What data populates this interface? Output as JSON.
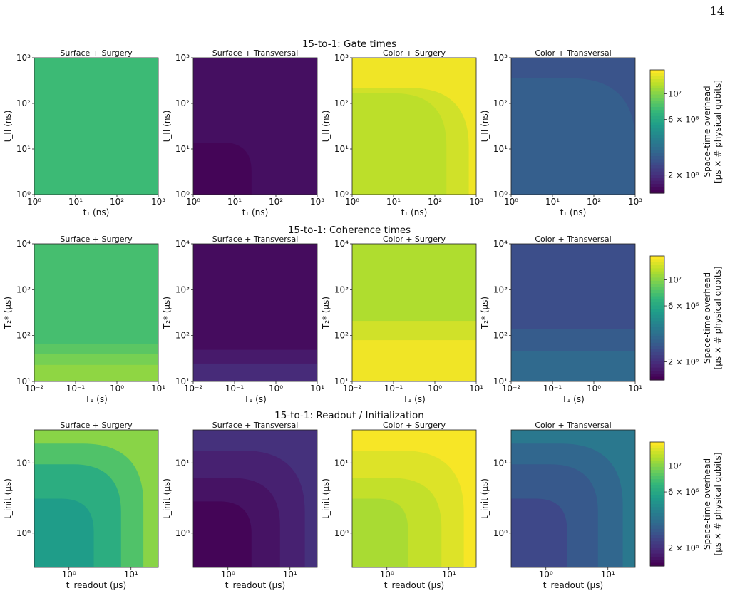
{
  "page_number": "14",
  "colormap": [
    "#440154",
    "#482878",
    "#3e4989",
    "#31688e",
    "#26828e",
    "#1f9e89",
    "#35b779",
    "#6ece58",
    "#b5de2b",
    "#fde725"
  ],
  "chart_data": [
    {
      "type": "heatmap",
      "title": "15-to-1: Gate times",
      "colorbar": {
        "label_line1": "Space-time overhead",
        "label_line2": "[μs × # physical qubits]",
        "ticks": [
          {
            "value": 10000000,
            "label": "10⁷"
          },
          {
            "value": 6000000,
            "label": "6 × 10⁶"
          },
          {
            "value": 2000000,
            "label": "2 × 10⁶"
          }
        ]
      },
      "panels": [
        {
          "title": "Surface + Surgery",
          "xlabel": "t₁ (ns)",
          "ylabel": "t_II (ns)",
          "xticks": [
            "10⁰",
            "10¹",
            "10²",
            "10³"
          ],
          "yticks": [
            "10⁰",
            "10¹",
            "10²",
            "10³"
          ],
          "regions": [
            {
              "value": 0.68
            }
          ]
        },
        {
          "title": "Surface + Transversal",
          "xlabel": "t₁ (ns)",
          "ylabel": "t_II (ns)",
          "xticks": [
            "10⁰",
            "10¹",
            "10²",
            "10³"
          ],
          "yticks": [
            "10⁰",
            "10¹",
            "10²",
            "10³"
          ],
          "regions": [
            {
              "value": 0.04
            },
            {
              "value": 0.01,
              "corner": [
                0.47,
                0.38
              ]
            }
          ]
        },
        {
          "title": "Color + Surgery",
          "xlabel": "t₁ (ns)",
          "ylabel": "t_II (ns)",
          "xticks": [
            "10⁰",
            "10¹",
            "10²",
            "10³"
          ],
          "yticks": [
            "10⁰",
            "10¹",
            "10²",
            "10³"
          ],
          "regions": [
            {
              "value": 0.98
            },
            {
              "value": 0.93,
              "corner": [
                0.94,
                0.78
              ]
            },
            {
              "value": 0.9,
              "corner": [
                0.76,
                0.74
              ]
            }
          ]
        },
        {
          "title": "Color + Transversal",
          "xlabel": "t₁ (ns)",
          "ylabel": "t_II (ns)",
          "xticks": [
            "10⁰",
            "10¹",
            "10²",
            "10³"
          ],
          "yticks": [
            "10⁰",
            "10¹",
            "10²",
            "10³"
          ],
          "regions": [
            {
              "value": 0.26
            },
            {
              "value": 0.3,
              "corner": [
                1.0,
                0.85
              ]
            }
          ]
        }
      ]
    },
    {
      "type": "heatmap",
      "title": "15-to-1: Coherence times",
      "colorbar": {
        "label_line1": "Space-time overhead",
        "label_line2": "[μs × # physical qubits]",
        "ticks": [
          {
            "value": 10000000,
            "label": "10⁷"
          },
          {
            "value": 6000000,
            "label": "6 × 10⁶"
          },
          {
            "value": 2000000,
            "label": "2 × 10⁶"
          }
        ]
      },
      "panels": [
        {
          "title": "Surface + Surgery",
          "xlabel": "T₁ (s)",
          "ylabel": "T₂* (μs)",
          "xticks": [
            "10⁻²",
            "10⁻¹",
            "10⁰",
            "10¹"
          ],
          "yticks": [
            "10¹",
            "10²",
            "10³",
            "10⁴"
          ],
          "regions": [
            {
              "value": 0.7
            },
            {
              "value": 0.74,
              "band": [
                0.0,
                0.27
              ]
            },
            {
              "value": 0.79,
              "band": [
                0.0,
                0.2
              ]
            },
            {
              "value": 0.83,
              "band": [
                0.0,
                0.12
              ]
            }
          ]
        },
        {
          "title": "Surface + Transversal",
          "xlabel": "T₁ (s)",
          "ylabel": "T₂* (μs)",
          "xticks": [
            "10⁻²",
            "10⁻¹",
            "10⁰",
            "10¹"
          ],
          "yticks": [
            "10¹",
            "10²",
            "10³",
            "10⁴"
          ],
          "regions": [
            {
              "value": 0.03
            },
            {
              "value": 0.07,
              "band": [
                0.0,
                0.23
              ]
            },
            {
              "value": 0.12,
              "band": [
                0.0,
                0.13
              ]
            }
          ]
        },
        {
          "title": "Color + Surgery",
          "xlabel": "T₁ (s)",
          "ylabel": "T₂* (μs)",
          "xticks": [
            "10⁻²",
            "10⁻¹",
            "10⁰",
            "10¹"
          ],
          "yticks": [
            "10¹",
            "10²",
            "10³",
            "10⁴"
          ],
          "regions": [
            {
              "value": 0.88
            },
            {
              "value": 0.93,
              "band": [
                0.0,
                0.44
              ]
            },
            {
              "value": 0.98,
              "band": [
                0.0,
                0.3
              ]
            }
          ]
        },
        {
          "title": "Color + Transversal",
          "xlabel": "T₁ (s)",
          "ylabel": "T₂* (μs)",
          "xticks": [
            "10⁻²",
            "10⁻¹",
            "10⁰",
            "10¹"
          ],
          "yticks": [
            "10¹",
            "10²",
            "10³",
            "10⁴"
          ],
          "regions": [
            {
              "value": 0.24
            },
            {
              "value": 0.29,
              "band": [
                0.0,
                0.38
              ]
            },
            {
              "value": 0.34,
              "band": [
                0.0,
                0.22
              ]
            }
          ]
        }
      ]
    },
    {
      "type": "heatmap",
      "title": "15-to-1: Readout / Initialization",
      "colorbar": {
        "label_line1": "Space-time overhead",
        "label_line2": "[μs × # physical qubits]",
        "ticks": [
          {
            "value": 10000000,
            "label": "10⁷"
          },
          {
            "value": 6000000,
            "label": "6 × 10⁶"
          },
          {
            "value": 2000000,
            "label": "2 × 10⁶"
          }
        ]
      },
      "panels": [
        {
          "title": "Surface + Surgery",
          "xlabel": "t_readout (μs)",
          "ylabel": "t_init (μs)",
          "xticks": [
            "10⁰",
            "10¹"
          ],
          "yticks": [
            "10⁰",
            "10¹"
          ],
          "regions": [
            {
              "value": 0.82
            },
            {
              "value": 0.72,
              "corner": [
                0.88,
                0.9
              ]
            },
            {
              "value": 0.62,
              "corner": [
                0.7,
                0.75
              ]
            },
            {
              "value": 0.55,
              "corner": [
                0.48,
                0.5
              ]
            }
          ]
        },
        {
          "title": "Surface + Transversal",
          "xlabel": "t_readout (μs)",
          "ylabel": "t_init (μs)",
          "xticks": [
            "10⁰",
            "10¹"
          ],
          "yticks": [
            "10¹",
            "10⁰"
          ],
          "regions": [
            {
              "value": 0.14
            },
            {
              "value": 0.09,
              "corner": [
                0.9,
                0.85
              ]
            },
            {
              "value": 0.05,
              "corner": [
                0.7,
                0.65
              ]
            },
            {
              "value": 0.01,
              "corner": [
                0.47,
                0.48
              ]
            }
          ]
        },
        {
          "title": "Color + Surgery",
          "xlabel": "t_readout (μs)",
          "ylabel": "t_init (μs)",
          "xticks": [
            "10⁰",
            "10¹"
          ],
          "yticks": [
            "10¹",
            "10⁰"
          ],
          "regions": [
            {
              "value": 0.99
            },
            {
              "value": 0.95,
              "corner": [
                0.9,
                0.85
              ]
            },
            {
              "value": 0.91,
              "corner": [
                0.72,
                0.65
              ]
            },
            {
              "value": 0.87,
              "corner": [
                0.45,
                0.5
              ]
            }
          ]
        },
        {
          "title": "Color + Transversal",
          "xlabel": "t_readout (μs)",
          "ylabel": "t_init (μs)",
          "xticks": [
            "10⁰",
            "10¹"
          ],
          "yticks": [
            "10¹",
            "10⁰"
          ],
          "regions": [
            {
              "value": 0.4
            },
            {
              "value": 0.33,
              "corner": [
                0.9,
                0.9
              ]
            },
            {
              "value": 0.28,
              "corner": [
                0.7,
                0.75
              ]
            },
            {
              "value": 0.22,
              "corner": [
                0.45,
                0.5
              ]
            }
          ]
        }
      ]
    }
  ]
}
